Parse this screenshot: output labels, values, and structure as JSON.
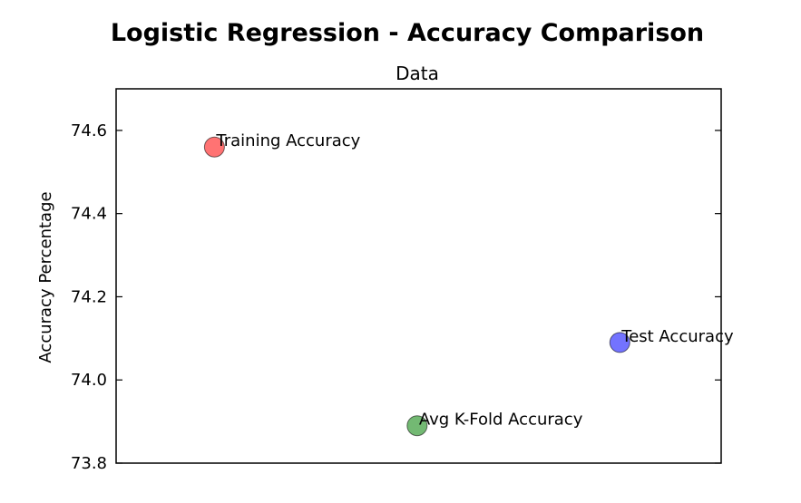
{
  "chart_data": {
    "type": "scatter",
    "suptitle": "Logistic Regression - Accuracy Comparison",
    "title": "Data",
    "xlabel": "",
    "ylabel": "Accuracy Percentage",
    "xlim": [
      0,
      4
    ],
    "ylim": [
      73.8,
      74.7
    ],
    "yticks": [
      73.8,
      74.0,
      74.2,
      74.4,
      74.6
    ],
    "ytick_labels": [
      "73.8",
      "74.0",
      "74.2",
      "74.4",
      "74.6"
    ],
    "grid": false,
    "points": [
      {
        "label": "Training Accuracy",
        "x": 0.65,
        "y": 74.56,
        "color": "#ff0000"
      },
      {
        "label": "Avg K-Fold Accuracy",
        "x": 1.99,
        "y": 73.89,
        "color": "#008000"
      },
      {
        "label": "Test Accuracy",
        "x": 3.33,
        "y": 74.09,
        "color": "#0000ff"
      }
    ],
    "marker_alpha": 0.55
  }
}
